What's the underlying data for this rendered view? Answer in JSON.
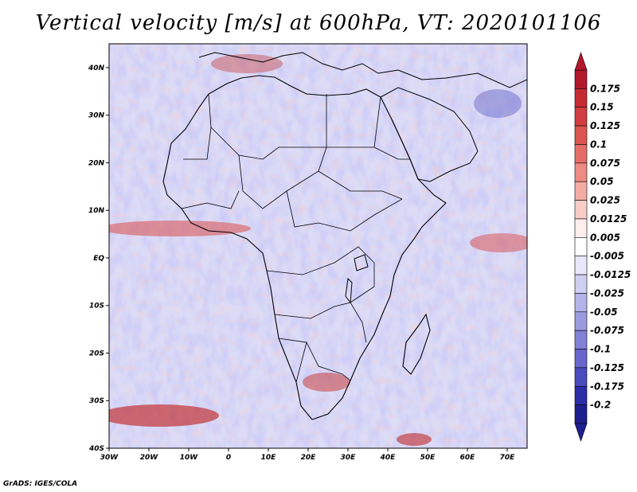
{
  "title": "Vertical velocity [m/s] at 600hPa, VT: 2020101106",
  "credit": "GrADS: IGES/COLA",
  "map": {
    "lat_labels": [
      "40N",
      "30N",
      "20N",
      "10N",
      "EQ",
      "10S",
      "20S",
      "30S",
      "40S"
    ],
    "lat_values": [
      40,
      30,
      20,
      10,
      0,
      -10,
      -20,
      -30,
      -40
    ],
    "lon_labels": [
      "30W",
      "20W",
      "10W",
      "0",
      "10E",
      "20E",
      "30E",
      "40E",
      "50E",
      "60E",
      "70E"
    ],
    "lon_values": [
      -30,
      -20,
      -10,
      0,
      10,
      20,
      30,
      40,
      50,
      60,
      70
    ],
    "lon_range": [
      -30,
      75
    ],
    "lat_range": [
      -40,
      45
    ]
  },
  "colorbar": {
    "labels": [
      "0.175",
      "0.15",
      "0.125",
      "0.1",
      "0.075",
      "0.05",
      "0.025",
      "0.0125",
      "0.005",
      "-0.005",
      "-0.0125",
      "-0.025",
      "-0.05",
      "-0.075",
      "-0.1",
      "-0.125",
      "-0.175",
      "-0.2"
    ],
    "colors": [
      "#b2182b",
      "#c62b34",
      "#d13d40",
      "#dc5550",
      "#e56d67",
      "#ec8b83",
      "#f3aca4",
      "#f8cdc7",
      "#fdeeec",
      "#ffffff",
      "#e8e8fa",
      "#cfcff2",
      "#b4b4ea",
      "#9b9be0",
      "#8282d6",
      "#6666cc",
      "#4b4bbd",
      "#2d2da8",
      "#1e1e8e"
    ]
  }
}
